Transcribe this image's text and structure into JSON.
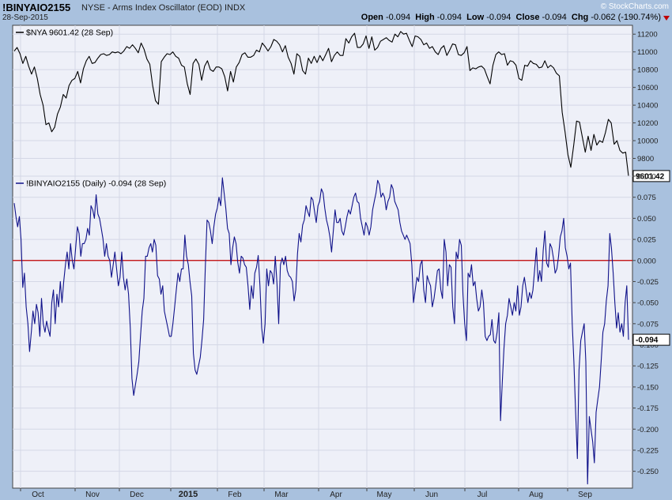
{
  "header": {
    "symbol": "!BINYAIO2155",
    "description": "NYSE - Arms Index Oscillator (EOD)",
    "exchange": "INDX",
    "date": "28-Sep-2015",
    "brand": "© StockCharts.com",
    "open_label": "Open",
    "open": "-0.094",
    "high_label": "High",
    "high": "-0.094",
    "low_label": "Low",
    "low": "-0.094",
    "close_label": "Close",
    "close": "-0.094",
    "chg_label": "Chg",
    "chg": "-0.062 (-190.74%)",
    "down_color": "#c00000"
  },
  "chart_data": [
    {
      "type": "line",
      "legend": "$NYA 9601.42 (28 Sep)",
      "last_value_label": "9601.42",
      "ylim": [
        9600,
        11300
      ],
      "yticks": [
        9800,
        10000,
        10200,
        10400,
        10600,
        10800,
        11000,
        11200
      ],
      "ytick_labels": [
        "9800",
        "10000",
        "10200",
        "10400",
        "10600",
        "10800",
        "11000",
        "11200"
      ],
      "color": "#000000",
      "grid": true,
      "y": [
        11010,
        11050,
        10980,
        10870,
        10950,
        10840,
        10750,
        10830,
        10700,
        10520,
        10400,
        10180,
        10200,
        10100,
        10150,
        10300,
        10380,
        10520,
        10480,
        10620,
        10680,
        10700,
        10780,
        10650,
        10810,
        10900,
        10950,
        10870,
        10880,
        10930,
        10970,
        10980,
        10960,
        10970,
        11000,
        10990,
        11000,
        10980,
        11010,
        11060,
        11040,
        11080,
        11040,
        10990,
        11100,
        11030,
        10920,
        10860,
        10620,
        10450,
        10410,
        10890,
        10940,
        10980,
        10970,
        11000,
        10950,
        10930,
        10850,
        10830,
        10640,
        10520,
        10870,
        10920,
        10860,
        10680,
        10840,
        10900,
        10800,
        10780,
        10830,
        10830,
        10810,
        10720,
        10560,
        10780,
        10660,
        10830,
        10880,
        10970,
        10990,
        10940,
        10940,
        10960,
        11020,
        11000,
        11100,
        11060,
        11010,
        11060,
        11140,
        11120,
        11080,
        11000,
        11070,
        10940,
        10870,
        10750,
        10980,
        10950,
        10790,
        10750,
        10930,
        10870,
        10950,
        10880,
        10960,
        10900,
        10970,
        11040,
        10890,
        10960,
        11000,
        10960,
        10960,
        11150,
        11100,
        11170,
        11210,
        11050,
        11050,
        11090,
        11180,
        11040,
        11170,
        11020,
        11050,
        11120,
        11140,
        11160,
        11130,
        11110,
        11200,
        11170,
        11230,
        11200,
        11210,
        11130,
        11060,
        11180,
        11170,
        11140,
        11080,
        11100,
        11040,
        11060,
        11000,
        10970,
        11040,
        11070,
        10960,
        11020,
        11090,
        11080,
        10970,
        10960,
        10990,
        11060,
        10790,
        10820,
        10810,
        10830,
        10840,
        10810,
        10720,
        10640,
        10850,
        10970,
        11000,
        10970,
        10980,
        10850,
        10900,
        10890,
        10850,
        10700,
        10680,
        10850,
        10840,
        10900,
        10870,
        10860,
        10820,
        10830,
        10900,
        10820,
        10850,
        10820,
        10760,
        10730,
        10320,
        10100,
        9840,
        9700,
        9950,
        10220,
        10210,
        10040,
        9870,
        10050,
        9890,
        10070,
        9950,
        10000,
        9980,
        10090,
        10240,
        10200,
        9960,
        10000,
        9890,
        9860,
        9870,
        9601
      ],
      "x_axis": {
        "labels": [
          "Oct",
          "Nov",
          "Dec",
          "2015",
          "Feb",
          "Mar",
          "Apr",
          "May",
          "Jun",
          "Jul",
          "Aug",
          "Sep"
        ]
      }
    },
    {
      "type": "line",
      "legend": "!BINYAIO2155 (Daily) -0.094 (28 Sep)",
      "last_value_label": "-0.094",
      "ylim": [
        -0.27,
        0.1
      ],
      "yticks": [
        -0.25,
        -0.225,
        -0.2,
        -0.175,
        -0.15,
        -0.125,
        -0.1,
        -0.075,
        -0.05,
        -0.025,
        0,
        0.025,
        0.05,
        0.075,
        0.1
      ],
      "ytick_labels": [
        "-0.250",
        "-0.225",
        "-0.200",
        "-0.175",
        "-0.150",
        "-0.125",
        "-0.100",
        "-0.075",
        "-0.050",
        "-0.025",
        "0.000",
        "0.025",
        "0.050",
        "0.075",
        "0.100"
      ],
      "reference_line": {
        "value": 0,
        "color": "#c00000"
      },
      "color": "#10128a",
      "grid": true,
      "y": [
        0.068,
        0.052,
        0.04,
        0.052,
        0.025,
        -0.032,
        -0.015,
        -0.055,
        -0.075,
        -0.108,
        -0.085,
        -0.06,
        -0.075,
        -0.052,
        -0.062,
        -0.09,
        -0.045,
        -0.075,
        -0.085,
        -0.072,
        -0.082,
        -0.09,
        -0.05,
        -0.035,
        -0.075,
        -0.04,
        -0.055,
        -0.025,
        -0.05,
        -0.025,
        -0.005,
        0.01,
        -0.01,
        0.02,
        0.0,
        -0.01,
        0.015,
        0.04,
        0.032,
        0.005,
        0.02,
        0.02,
        0.025,
        0.038,
        0.03,
        0.065,
        0.06,
        0.05,
        0.078,
        0.055,
        0.05,
        0.038,
        0.026,
        0.005,
        0.02,
        0.005,
        0.0,
        -0.02,
        -0.005,
        0.01,
        -0.01,
        -0.03,
        -0.02,
        0.01,
        -0.02,
        -0.035,
        -0.022,
        -0.04,
        -0.08,
        -0.14,
        -0.16,
        -0.148,
        -0.135,
        -0.12,
        -0.09,
        -0.06,
        -0.045,
        0.005,
        0.005,
        0.015,
        0.02,
        0.01,
        0.025,
        0.018,
        -0.018,
        -0.022,
        -0.04,
        -0.03,
        -0.06,
        -0.07,
        -0.08,
        -0.09,
        -0.09,
        -0.075,
        -0.055,
        -0.035,
        -0.015,
        -0.025,
        -0.01,
        -0.01,
        0.03,
        0.005,
        -0.005,
        -0.025,
        -0.042,
        -0.11,
        -0.13,
        -0.135,
        -0.125,
        -0.115,
        -0.095,
        -0.07,
        -0.008,
        0.048,
        0.045,
        0.035,
        0.02,
        0.04,
        0.055,
        0.062,
        0.075,
        0.065,
        0.098,
        0.08,
        0.062,
        0.038,
        0.032,
        -0.005,
        0.015,
        0.028,
        0.02,
        -0.002,
        -0.015,
        0.005,
        0.003,
        -0.005,
        -0.008,
        -0.03,
        -0.058,
        -0.03,
        -0.045,
        -0.015,
        -0.008,
        0.006,
        -0.03,
        -0.08,
        -0.098,
        -0.075,
        -0.01,
        -0.03,
        -0.012,
        -0.015,
        -0.028,
        0.005,
        -0.028,
        -0.075,
        -0.005,
        0.003,
        -0.005,
        0.005,
        -0.012,
        -0.018,
        -0.02,
        -0.025,
        -0.048,
        -0.035,
        0.008,
        0.032,
        0.022,
        0.042,
        0.048,
        0.065,
        0.058,
        0.052,
        0.075,
        0.072,
        0.058,
        0.045,
        0.065,
        0.07,
        0.085,
        0.08,
        0.062,
        0.048,
        0.04,
        0.028,
        0.01,
        0.035,
        0.06,
        0.045,
        0.045,
        0.05,
        0.035,
        0.03,
        0.04,
        0.052,
        0.06,
        0.055,
        0.065,
        0.075,
        0.08,
        0.07,
        0.068,
        0.05,
        0.04,
        0.03,
        0.045,
        0.04,
        0.03,
        0.04,
        0.06,
        0.07,
        0.08,
        0.095,
        0.09,
        0.075,
        0.08,
        0.075,
        0.06,
        0.07,
        0.075,
        0.09,
        0.085,
        0.07,
        0.065,
        0.06,
        0.045,
        0.035,
        0.03,
        0.025,
        0.03,
        0.025,
        0.02,
        -0.005,
        -0.05,
        -0.035,
        -0.02,
        -0.025,
        -0.005,
        0.0,
        -0.035,
        -0.05,
        -0.018,
        -0.025,
        -0.03,
        -0.055,
        -0.045,
        -0.03,
        -0.012,
        -0.01,
        -0.035,
        -0.045,
        0.025,
        0.01,
        -0.03,
        -0.005,
        -0.008,
        -0.055,
        -0.075,
        0.01,
        0.002,
        0.025,
        0.018,
        -0.04,
        -0.075,
        -0.095,
        -0.015,
        -0.02,
        -0.005,
        -0.03,
        -0.025,
        -0.045,
        -0.06,
        -0.055,
        -0.035,
        -0.05,
        -0.09,
        -0.095,
        -0.09,
        -0.088,
        -0.07,
        -0.095,
        -0.098,
        -0.085,
        -0.062,
        -0.19,
        -0.145,
        -0.105,
        -0.075,
        -0.065,
        -0.045,
        -0.055,
        -0.065,
        -0.05,
        -0.06,
        -0.03,
        -0.065,
        -0.055,
        -0.03,
        -0.02,
        -0.035,
        -0.05,
        -0.038,
        -0.045,
        -0.035,
        -0.01,
        0.015,
        -0.025,
        -0.012,
        -0.025,
        0.012,
        0.035,
        -0.003,
        -0.008,
        0.02,
        0.015,
        0.003,
        -0.015,
        -0.01,
        0.005,
        0.028,
        0.035,
        0.05,
        0.015,
        0.005,
        -0.01,
        -0.003,
        -0.075,
        -0.12,
        -0.18,
        -0.235,
        -0.13,
        -0.095,
        -0.085,
        -0.075,
        -0.12,
        -0.265,
        -0.185,
        -0.2,
        -0.215,
        -0.24,
        -0.18,
        -0.165,
        -0.15,
        -0.118,
        -0.085,
        -0.075,
        -0.048,
        -0.03,
        0.032,
        0.015,
        -0.015,
        -0.05,
        -0.08,
        -0.062,
        -0.085,
        -0.075,
        -0.09,
        -0.05,
        -0.03,
        -0.094
      ],
      "x_axis": {
        "labels": [
          "Oct",
          "Nov",
          "Dec",
          "2015",
          "Feb",
          "Mar",
          "Apr",
          "May",
          "Jun",
          "Jul",
          "Aug",
          "Sep"
        ]
      }
    }
  ]
}
